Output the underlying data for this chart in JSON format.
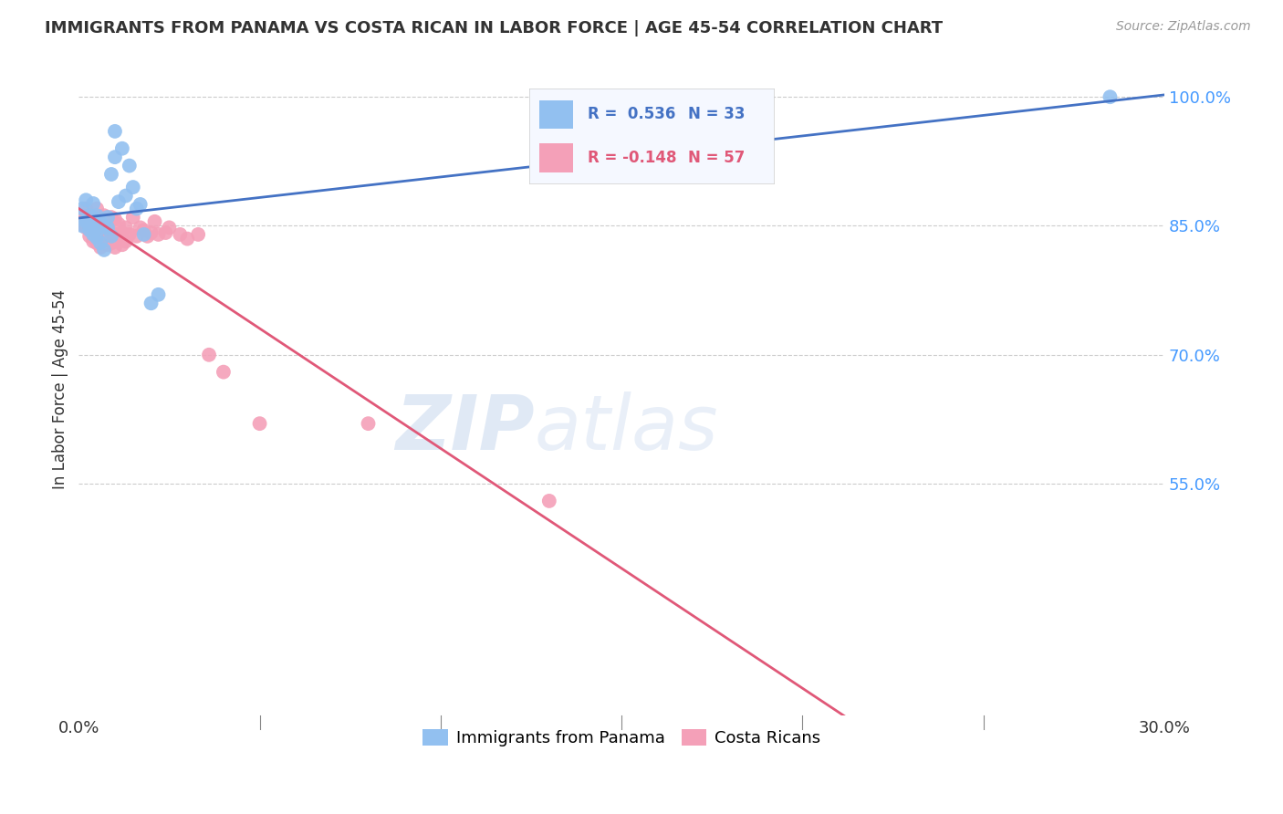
{
  "title": "IMMIGRANTS FROM PANAMA VS COSTA RICAN IN LABOR FORCE | AGE 45-54 CORRELATION CHART",
  "source": "Source: ZipAtlas.com",
  "ylabel": "In Labor Force | Age 45-54",
  "ytick_vals": [
    1.0,
    0.85,
    0.7,
    0.55
  ],
  "ytick_labels": [
    "100.0%",
    "85.0%",
    "70.0%",
    "55.0%"
  ],
  "xlim": [
    0.0,
    0.3
  ],
  "ylim": [
    0.28,
    1.04
  ],
  "watermark_zip": "ZIP",
  "watermark_atlas": "atlas",
  "panama_color": "#92c0f0",
  "costa_rica_color": "#f4a0b8",
  "panama_line_color": "#4472c4",
  "costa_rica_line_color": "#e05878",
  "panama_r": 0.536,
  "panama_n": 33,
  "costa_rica_r": -0.148,
  "costa_rica_n": 57,
  "panama_points_x": [
    0.001,
    0.001,
    0.002,
    0.002,
    0.003,
    0.003,
    0.004,
    0.004,
    0.004,
    0.005,
    0.005,
    0.005,
    0.006,
    0.006,
    0.007,
    0.007,
    0.008,
    0.008,
    0.009,
    0.009,
    0.01,
    0.01,
    0.011,
    0.012,
    0.013,
    0.014,
    0.015,
    0.016,
    0.017,
    0.018,
    0.02,
    0.022,
    0.285
  ],
  "panama_points_y": [
    0.85,
    0.87,
    0.855,
    0.88,
    0.845,
    0.862,
    0.84,
    0.86,
    0.876,
    0.836,
    0.848,
    0.862,
    0.83,
    0.855,
    0.822,
    0.848,
    0.848,
    0.86,
    0.838,
    0.91,
    0.93,
    0.96,
    0.878,
    0.94,
    0.885,
    0.92,
    0.895,
    0.87,
    0.875,
    0.84,
    0.76,
    0.77,
    1.0
  ],
  "costa_rica_points_x": [
    0.001,
    0.001,
    0.002,
    0.002,
    0.002,
    0.003,
    0.003,
    0.003,
    0.004,
    0.004,
    0.004,
    0.005,
    0.005,
    0.005,
    0.005,
    0.006,
    0.006,
    0.006,
    0.006,
    0.007,
    0.007,
    0.007,
    0.007,
    0.008,
    0.008,
    0.008,
    0.009,
    0.009,
    0.009,
    0.01,
    0.01,
    0.01,
    0.011,
    0.011,
    0.012,
    0.012,
    0.013,
    0.013,
    0.014,
    0.015,
    0.016,
    0.017,
    0.018,
    0.019,
    0.02,
    0.021,
    0.022,
    0.024,
    0.025,
    0.028,
    0.03,
    0.033,
    0.036,
    0.04,
    0.05,
    0.08,
    0.13
  ],
  "costa_rica_points_y": [
    0.852,
    0.862,
    0.848,
    0.858,
    0.87,
    0.838,
    0.85,
    0.862,
    0.832,
    0.848,
    0.858,
    0.83,
    0.84,
    0.852,
    0.87,
    0.825,
    0.838,
    0.848,
    0.86,
    0.83,
    0.84,
    0.852,
    0.862,
    0.828,
    0.84,
    0.858,
    0.83,
    0.842,
    0.86,
    0.825,
    0.84,
    0.858,
    0.838,
    0.852,
    0.828,
    0.842,
    0.832,
    0.848,
    0.84,
    0.86,
    0.838,
    0.848,
    0.845,
    0.838,
    0.842,
    0.855,
    0.84,
    0.842,
    0.848,
    0.84,
    0.835,
    0.84,
    0.7,
    0.68,
    0.62,
    0.62,
    0.53
  ],
  "background_color": "#ffffff",
  "grid_color": "#cccccc",
  "legend_bg": "#f0f4ff",
  "bottom_legend_items": [
    "Immigrants from Panama",
    "Costa Ricans"
  ]
}
